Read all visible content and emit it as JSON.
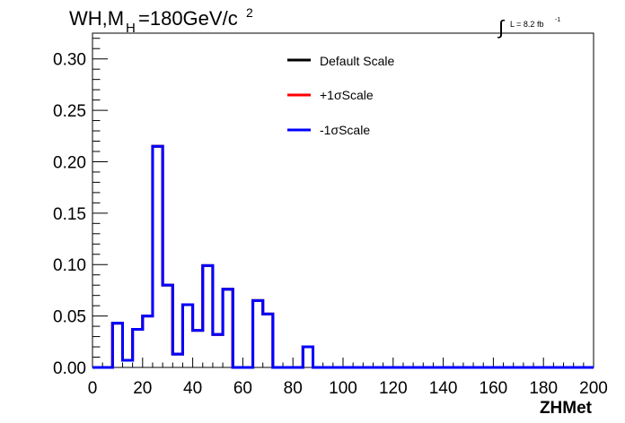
{
  "header": {
    "title_main": "WH,M",
    "title_sub": "H",
    "title_rest": "=180GeV/c",
    "title_sup": "2",
    "lumi_int": "∫",
    "lumi_text": "L = 8.2 fb",
    "lumi_sup": "-1"
  },
  "legend": {
    "entries": [
      {
        "label": "Default Scale",
        "color": "#000000"
      },
      {
        "label": "+1σScale",
        "color": "#ff0000"
      },
      {
        "label": "-1σScale",
        "color": "#0000ff"
      }
    ]
  },
  "chart_data": {
    "type": "line",
    "step": true,
    "title": "WH,M_H=180GeV/c^2",
    "xlabel": "ZHMet",
    "ylabel": "",
    "xlim": [
      0,
      200
    ],
    "ylim": [
      0,
      0.325
    ],
    "xticks": [
      0,
      20,
      40,
      60,
      80,
      100,
      120,
      140,
      160,
      180,
      200
    ],
    "yticks": [
      0.0,
      0.05,
      0.1,
      0.15,
      0.2,
      0.25,
      0.3
    ],
    "xtick_labels": [
      "0",
      "20",
      "40",
      "60",
      "80",
      "100",
      "120",
      "140",
      "160",
      "180",
      "200"
    ],
    "ytick_labels": [
      "0.00",
      "0.05",
      "0.10",
      "0.15",
      "0.20",
      "0.25",
      "0.30"
    ],
    "bin_edges": [
      0,
      4,
      8,
      12,
      16,
      20,
      24,
      28,
      32,
      36,
      40,
      44,
      48,
      52,
      56,
      60,
      64,
      68,
      72,
      76,
      80,
      84,
      88,
      92,
      96,
      100,
      104,
      108,
      112,
      116,
      120,
      124,
      128,
      132,
      136,
      140,
      144,
      148,
      152,
      156,
      160,
      164,
      168,
      172,
      176,
      180,
      184,
      188,
      192,
      196,
      200
    ],
    "series": [
      {
        "name": "Default Scale",
        "color": "#000000",
        "values": [
          0,
          0,
          0.043,
          0.007,
          0.037,
          0.05,
          0.215,
          0.08,
          0.013,
          0.061,
          0.036,
          0.099,
          0.032,
          0.076,
          0,
          0,
          0.065,
          0.052,
          0,
          0,
          0,
          0.02,
          0,
          0,
          0,
          0,
          0,
          0,
          0,
          0,
          0,
          0,
          0,
          0,
          0,
          0,
          0,
          0,
          0,
          0,
          0,
          0,
          0,
          0,
          0,
          0,
          0,
          0,
          0,
          0
        ]
      },
      {
        "name": "+1σScale",
        "color": "#ff0000",
        "values": [
          0,
          0,
          0.043,
          0.007,
          0.037,
          0.05,
          0.215,
          0.08,
          0.013,
          0.061,
          0.036,
          0.099,
          0.032,
          0.076,
          0,
          0,
          0.065,
          0.052,
          0,
          0,
          0,
          0.02,
          0,
          0,
          0,
          0,
          0,
          0,
          0,
          0,
          0,
          0,
          0,
          0,
          0,
          0,
          0,
          0,
          0,
          0,
          0,
          0,
          0,
          0,
          0,
          0,
          0,
          0,
          0,
          0
        ]
      },
      {
        "name": "-1σScale",
        "color": "#0000ff",
        "values": [
          0,
          0,
          0.043,
          0.007,
          0.037,
          0.05,
          0.215,
          0.08,
          0.013,
          0.061,
          0.036,
          0.099,
          0.032,
          0.076,
          0,
          0,
          0.065,
          0.052,
          0,
          0,
          0,
          0.02,
          0,
          0,
          0,
          0,
          0,
          0,
          0,
          0,
          0,
          0,
          0,
          0,
          0,
          0,
          0,
          0,
          0,
          0,
          0,
          0,
          0,
          0,
          0,
          0,
          0,
          0,
          0,
          0
        ]
      }
    ],
    "grid": false,
    "legend_position": "top-center"
  }
}
